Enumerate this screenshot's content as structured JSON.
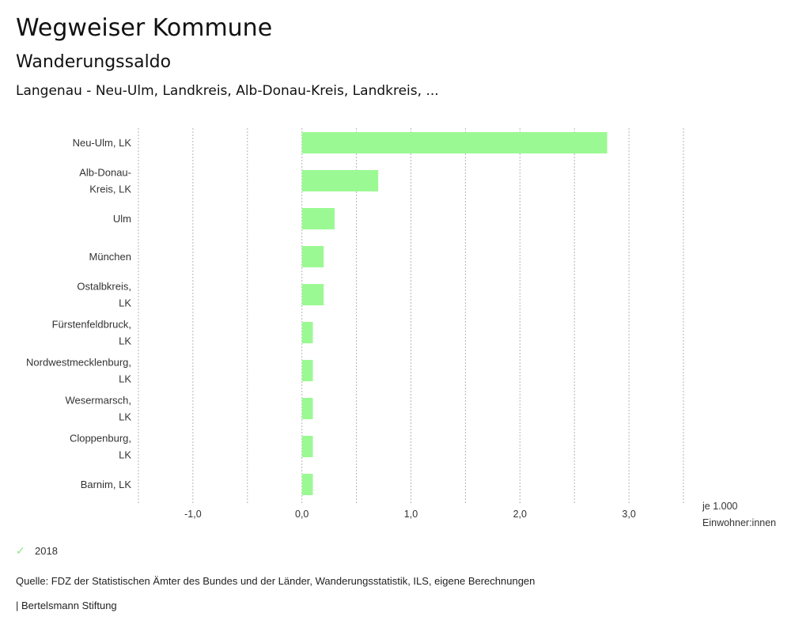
{
  "header": {
    "title": "Wegweiser Kommune",
    "subtitle": "Wanderungssaldo",
    "region": "Langenau - Neu-Ulm, Landkreis, Alb-Donau-Kreis, Landkreis, ..."
  },
  "chart_data": {
    "type": "bar",
    "orientation": "horizontal",
    "title": "Wanderungssaldo",
    "categories": [
      [
        "Neu-Ulm, LK"
      ],
      [
        "Alb-Donau-",
        "Kreis, LK"
      ],
      [
        "Ulm"
      ],
      [
        "München"
      ],
      [
        "Ostalbkreis,",
        "LK"
      ],
      [
        "Fürstenfeldbruck,",
        "LK"
      ],
      [
        "Nordwestmecklenburg,",
        "LK"
      ],
      [
        "Wesermarsch,",
        "LK"
      ],
      [
        "Cloppenburg,",
        "LK"
      ],
      [
        "Barnim, LK"
      ]
    ],
    "series": [
      {
        "name": "2018",
        "color": "#9bf993",
        "values": [
          2.8,
          0.7,
          0.3,
          0.2,
          0.2,
          0.1,
          0.1,
          0.1,
          0.1,
          0.1
        ]
      }
    ],
    "xlim": [
      -1.5,
      3.5
    ],
    "grid_values": [
      -1.5,
      -1.0,
      -0.5,
      0.0,
      0.5,
      1.0,
      1.5,
      2.0,
      2.5,
      3.0,
      3.5
    ],
    "ticks": [
      {
        "value": -1.0,
        "label": "-1,0"
      },
      {
        "value": 0.0,
        "label": "0,0"
      },
      {
        "value": 1.0,
        "label": "1,0"
      },
      {
        "value": 2.0,
        "label": "2,0"
      },
      {
        "value": 3.0,
        "label": "3,0"
      }
    ],
    "xlabel_lines": [
      "je 1.000",
      "Einwohner:innen"
    ],
    "grid": true,
    "legend_position": "bottom-left"
  },
  "legend": {
    "label": "2018",
    "icon": "check-icon",
    "color": "#8fe887"
  },
  "footer": {
    "source": "Quelle: FDZ der Statistischen Ämter des Bundes und der Länder, Wanderungsstatistik, ILS, eigene Berechnungen",
    "credit": "| Bertelsmann Stiftung"
  }
}
